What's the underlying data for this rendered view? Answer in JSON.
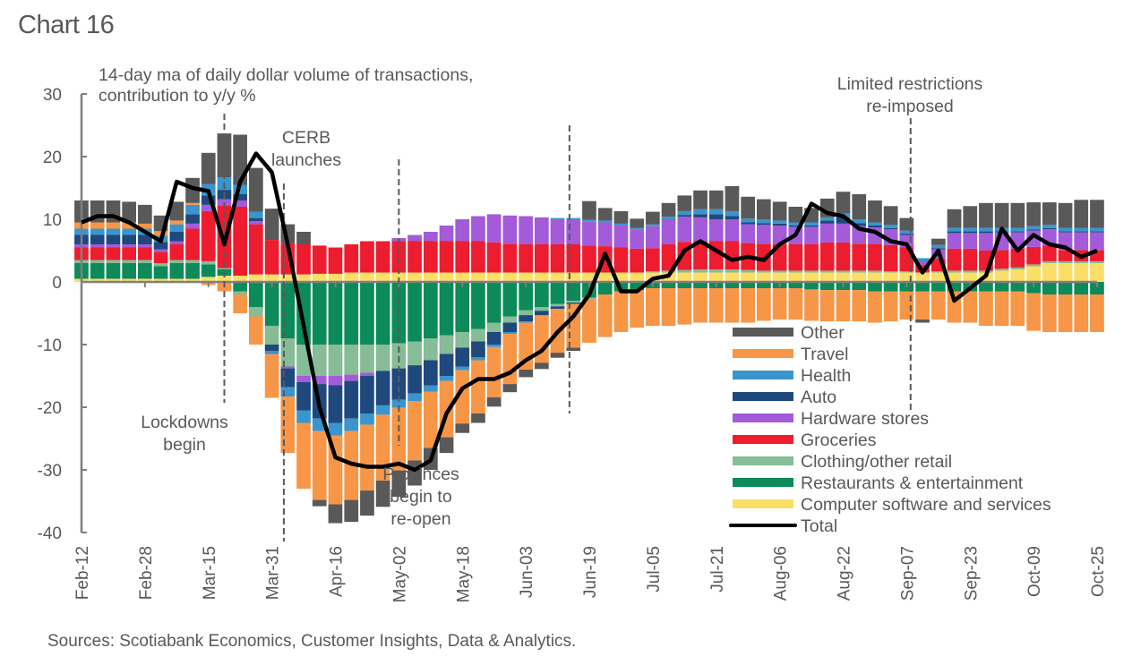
{
  "title": "Chart 16",
  "source": "Sources: Scotiabank Economics, Customer Insights, Data & Analytics.",
  "chart_data": {
    "type": "bar",
    "subtype": "stacked bar with line overlay",
    "title": "Chart 16",
    "subtitle": [
      "14-day ma of daily dollar volume of transactions,",
      "contribution to y/y %"
    ],
    "xlabel": "",
    "ylabel": "",
    "ylim": [
      -40,
      30
    ],
    "yticks": [
      30,
      20,
      10,
      0,
      -10,
      -20,
      -30,
      -40
    ],
    "x_tick_labels": [
      "Feb-12",
      "Feb-28",
      "Mar-15",
      "Mar-31",
      "Apr-16",
      "May-02",
      "May-18",
      "Jun-03",
      "Jun-19",
      "Jul-05",
      "Jul-21",
      "Aug-06",
      "Aug-22",
      "Sep-07",
      "Sep-23",
      "Oct-09",
      "Oct-25"
    ],
    "x_tick_interval_days": 16,
    "x_start": "Feb-12",
    "step_days": 4,
    "grid": false,
    "legend_position": "bottom-right",
    "annotations": [
      {
        "text": [
          "Lockdowns",
          "begin"
        ],
        "day": 36
      },
      {
        "text": [
          "CERB",
          "launches"
        ],
        "day": 51
      },
      {
        "text": [
          "Provinces",
          "begin to",
          "re-open"
        ],
        "day": 80
      },
      {
        "text": [],
        "day": 123
      },
      {
        "text": [
          "Limited restrictions",
          "re-imposed"
        ],
        "day": 209
      }
    ],
    "series": [
      {
        "name": "Other",
        "color": "#595959",
        "values": [
          3.5,
          3.5,
          3.5,
          3.3,
          3.0,
          2.5,
          3.0,
          4.0,
          5.0,
          7.0,
          8.0,
          7.0,
          5.0,
          3.0,
          2.0,
          -1.0,
          -3.0,
          -3.5,
          -4.0,
          -4.2,
          -4.2,
          -4.0,
          -3.5,
          -2.5,
          -1.5,
          -1.5,
          -1.5,
          -1.3,
          -1.2,
          -1.0,
          -0.8,
          -0.5,
          3.0,
          2.0,
          2.0,
          1.5,
          2.0,
          2.2,
          2.5,
          3.0,
          3.0,
          4.0,
          3.5,
          3.2,
          3.0,
          2.5,
          2.3,
          3.0,
          3.5,
          4.0,
          3.5,
          3.0,
          2.0,
          -0.5,
          1.0,
          3.0,
          3.5,
          4.0,
          4.0,
          4.0,
          3.8,
          3.6,
          4.0,
          4.5,
          4.5
        ]
      },
      {
        "name": "Travel",
        "color": "#F79646",
        "values": [
          1.0,
          1.0,
          1.0,
          1.0,
          0.8,
          0.7,
          0.6,
          0.3,
          -0.5,
          -1.5,
          -3.0,
          -4.5,
          -7.0,
          -9.0,
          -10.5,
          -11.0,
          -11.0,
          -11.0,
          -10.5,
          -10.5,
          -10.0,
          -9.5,
          -9.0,
          -9.0,
          -8.5,
          -8.5,
          -8.0,
          -8.0,
          -7.5,
          -7.5,
          -7.0,
          -7.0,
          -7.0,
          -6.8,
          -6.5,
          -6.0,
          -6.0,
          -6.0,
          -5.8,
          -5.5,
          -5.5,
          -5.5,
          -5.5,
          -5.2,
          -5.0,
          -5.0,
          -5.0,
          -5.0,
          -5.0,
          -5.0,
          -5.0,
          -4.8,
          -4.5,
          -4.5,
          -4.5,
          -5.0,
          -5.0,
          -5.5,
          -5.5,
          -5.5,
          -6.0,
          -6.0,
          -6.0,
          -6.0,
          -6.0
        ]
      },
      {
        "name": "Health",
        "color": "#3B95CD",
        "values": [
          1.0,
          1.0,
          1.0,
          1.0,
          1.0,
          1.0,
          1.2,
          1.5,
          1.8,
          2.0,
          1.5,
          1.0,
          -0.5,
          -1.5,
          -2.0,
          -2.0,
          -2.0,
          -2.0,
          -1.8,
          -1.5,
          -1.3,
          -1.2,
          -1.0,
          -0.8,
          -0.6,
          -0.5,
          -0.4,
          -0.3,
          -0.2,
          -0.1,
          0.2,
          0.2,
          0.3,
          0.3,
          0.3,
          0.3,
          0.3,
          0.4,
          0.6,
          0.8,
          0.8,
          0.8,
          0.6,
          0.6,
          0.5,
          0.5,
          0.5,
          0.5,
          0.6,
          0.6,
          0.5,
          0.5,
          0.5,
          0.4,
          0.5,
          0.5,
          0.5,
          0.5,
          0.5,
          0.5,
          0.5,
          0.5,
          0.5,
          0.5,
          0.5
        ]
      },
      {
        "name": "Auto",
        "color": "#1F497D",
        "values": [
          1.5,
          1.5,
          1.5,
          1.5,
          1.5,
          1.2,
          1.5,
          1.5,
          1.5,
          1.5,
          1.0,
          0.5,
          -1.0,
          -3.0,
          -4.5,
          -5.5,
          -6.0,
          -6.0,
          -6.0,
          -5.5,
          -5.0,
          -4.5,
          -4.0,
          -3.5,
          -3.0,
          -2.5,
          -2.0,
          -1.5,
          -1.0,
          -0.7,
          -0.4,
          -0.2,
          0.0,
          0.0,
          0.0,
          0.0,
          0.0,
          0.0,
          0.3,
          0.5,
          0.8,
          0.5,
          0.3,
          0.3,
          0.3,
          0.2,
          0.2,
          0.5,
          1.0,
          0.5,
          0.3,
          0.2,
          0.2,
          0.1,
          0.2,
          0.3,
          0.3,
          0.3,
          0.2,
          0.2,
          0.2,
          0.2,
          0.2,
          0.2,
          0.2
        ]
      },
      {
        "name": "Hardware stores",
        "color": "#A35BDA",
        "values": [
          0.5,
          0.5,
          0.5,
          0.5,
          0.5,
          0.4,
          0.5,
          0.8,
          1.0,
          1.0,
          1.0,
          0.5,
          0.0,
          -0.3,
          -1.0,
          -1.3,
          -1.5,
          -1.0,
          -0.5,
          0.0,
          0.5,
          1.0,
          1.5,
          2.5,
          3.5,
          4.0,
          4.5,
          4.5,
          4.5,
          4.3,
          4.0,
          4.0,
          3.8,
          3.8,
          3.5,
          3.0,
          3.5,
          4.0,
          4.0,
          3.8,
          3.5,
          3.5,
          3.0,
          3.0,
          3.0,
          2.8,
          2.8,
          3.0,
          3.0,
          2.8,
          2.6,
          2.5,
          2.0,
          0.6,
          1.5,
          2.5,
          2.5,
          2.8,
          2.8,
          2.6,
          2.6,
          2.6,
          2.8,
          2.8,
          2.8
        ]
      },
      {
        "name": "Groceries",
        "color": "#ED1C2E",
        "values": [
          2.0,
          2.0,
          2.0,
          2.0,
          2.0,
          1.8,
          2.5,
          5.0,
          8.0,
          10.0,
          11.0,
          8.0,
          5.5,
          5.0,
          4.8,
          4.5,
          4.2,
          4.5,
          5.0,
          5.0,
          5.0,
          5.0,
          5.0,
          5.0,
          5.0,
          5.0,
          4.8,
          4.6,
          4.5,
          4.5,
          4.5,
          4.5,
          4.3,
          4.2,
          4.0,
          3.8,
          3.7,
          4.2,
          4.5,
          4.5,
          4.5,
          4.5,
          4.3,
          4.3,
          4.2,
          4.2,
          4.2,
          4.5,
          4.5,
          4.3,
          4.3,
          4.2,
          3.8,
          1.2,
          2.0,
          3.5,
          3.5,
          3.2,
          3.0,
          3.0,
          2.8,
          2.5,
          1.8,
          1.8,
          1.8
        ]
      },
      {
        "name": "Clothing/other retail",
        "color": "#86BC96",
        "values": [
          0.5,
          0.5,
          0.5,
          0.5,
          0.5,
          0.5,
          0.5,
          0.5,
          0.5,
          0.2,
          -0.5,
          -1.5,
          -3.0,
          -4.5,
          -5.0,
          -5.0,
          -5.0,
          -4.8,
          -4.5,
          -4.2,
          -4.0,
          -3.8,
          -3.5,
          -3.0,
          -2.5,
          -2.0,
          -1.5,
          -1.0,
          -0.8,
          -0.6,
          -0.4,
          -0.3,
          -0.2,
          0.0,
          0.0,
          0.0,
          0.2,
          0.3,
          0.4,
          0.5,
          0.5,
          0.5,
          0.4,
          0.3,
          0.3,
          0.3,
          0.3,
          0.3,
          0.3,
          0.3,
          0.3,
          0.2,
          0.2,
          0.0,
          0.2,
          0.3,
          0.3,
          0.3,
          0.3,
          0.3,
          0.3,
          0.3,
          0.3,
          0.3,
          0.3
        ]
      },
      {
        "name": "Restaurants & entertainment",
        "color": "#0C8A5A",
        "values": [
          2.5,
          2.5,
          2.5,
          2.5,
          2.5,
          2.0,
          2.5,
          2.5,
          2.0,
          1.0,
          -1.5,
          -4.0,
          -7.0,
          -9.0,
          -10.0,
          -10.0,
          -10.0,
          -10.0,
          -10.0,
          -10.0,
          -9.8,
          -9.5,
          -9.0,
          -8.5,
          -8.0,
          -7.5,
          -6.5,
          -5.5,
          -4.5,
          -4.0,
          -3.5,
          -3.0,
          -2.5,
          -2.0,
          -1.5,
          -1.3,
          -1.0,
          -1.0,
          -1.0,
          -1.0,
          -1.0,
          -1.0,
          -1.0,
          -1.0,
          -1.0,
          -1.0,
          -1.2,
          -1.3,
          -1.3,
          -1.3,
          -1.5,
          -1.5,
          -1.5,
          -1.5,
          -1.5,
          -1.5,
          -1.5,
          -1.5,
          -1.5,
          -1.5,
          -1.8,
          -2.0,
          -2.0,
          -2.0,
          -2.0
        ]
      },
      {
        "name": "Computer software and services",
        "color": "#FBDE67",
        "values": [
          0.5,
          0.5,
          0.5,
          0.5,
          0.5,
          0.5,
          0.5,
          0.5,
          0.8,
          1.0,
          1.0,
          1.2,
          1.2,
          1.2,
          1.2,
          1.3,
          1.3,
          1.5,
          1.5,
          1.5,
          1.5,
          1.5,
          1.5,
          1.5,
          1.5,
          1.5,
          1.5,
          1.5,
          1.5,
          1.5,
          1.5,
          1.5,
          1.5,
          1.5,
          1.5,
          1.5,
          1.5,
          1.5,
          1.5,
          1.5,
          1.5,
          1.5,
          1.5,
          1.5,
          1.5,
          1.5,
          1.5,
          1.5,
          1.5,
          1.5,
          1.5,
          1.5,
          1.5,
          1.5,
          1.5,
          1.5,
          1.5,
          1.5,
          1.8,
          2.0,
          2.5,
          3.0,
          3.0,
          3.0,
          3.0
        ]
      }
    ],
    "line": {
      "name": "Total",
      "color": "#000000",
      "values": [
        9.5,
        10.5,
        10.5,
        9.5,
        8.0,
        6.5,
        16.0,
        15.0,
        14.5,
        6.0,
        16.0,
        20.5,
        17.5,
        6.0,
        -7.0,
        -20.0,
        -28.0,
        -29.0,
        -29.5,
        -29.5,
        -29.0,
        -30.0,
        -28.5,
        -21.0,
        -17.0,
        -15.5,
        -15.5,
        -14.5,
        -12.5,
        -11.0,
        -8.0,
        -5.5,
        -2.0,
        4.5,
        -1.5,
        -1.5,
        0.5,
        1.0,
        5.0,
        6.5,
        5.0,
        3.5,
        4.0,
        3.5,
        6.0,
        7.5,
        12.5,
        11.0,
        10.5,
        8.5,
        8.0,
        6.5,
        6.0,
        1.5,
        5.0,
        -3.0,
        -1.0,
        1.0,
        8.5,
        5.0,
        7.5,
        6.0,
        5.5,
        4.0,
        5.0
      ]
    }
  },
  "legend": [
    {
      "label": "Other",
      "color": "#595959",
      "kind": "bar"
    },
    {
      "label": "Travel",
      "color": "#F79646",
      "kind": "bar"
    },
    {
      "label": "Health",
      "color": "#3B95CD",
      "kind": "bar"
    },
    {
      "label": "Auto",
      "color": "#1F497D",
      "kind": "bar"
    },
    {
      "label": "Hardware stores",
      "color": "#A35BDA",
      "kind": "bar"
    },
    {
      "label": "Groceries",
      "color": "#ED1C2E",
      "kind": "bar"
    },
    {
      "label": "Clothing/other retail",
      "color": "#86BC96",
      "kind": "bar"
    },
    {
      "label": "Restaurants & entertainment",
      "color": "#0C8A5A",
      "kind": "bar"
    },
    {
      "label": "Computer software and services",
      "color": "#FBDE67",
      "kind": "bar"
    },
    {
      "label": "Total",
      "color": "#000000",
      "kind": "line"
    }
  ]
}
